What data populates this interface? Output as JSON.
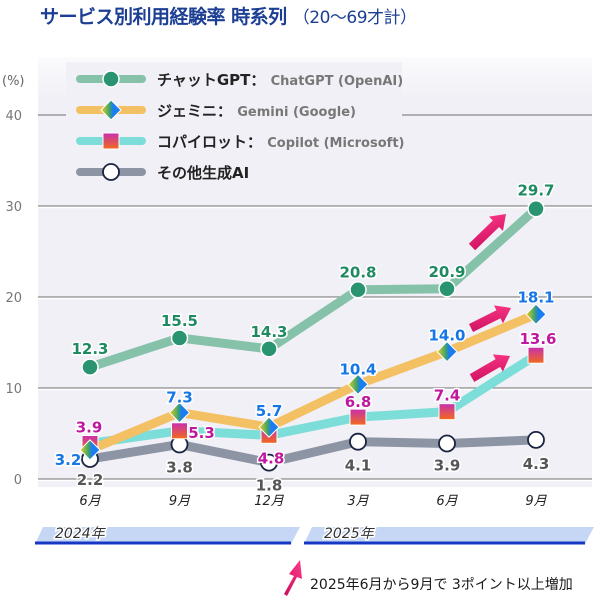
{
  "title": {
    "main": "サービス別利用経験率 時系列",
    "sub": "（20〜69才計）"
  },
  "chart_data": {
    "type": "line",
    "title": "サービス別利用経験率 時系列（20〜69才計）",
    "ylabel": "(%)",
    "ylim": [
      0,
      40
    ],
    "yticks": [
      "0",
      "10",
      "20",
      "30",
      "40"
    ],
    "grid": true,
    "legend_position": "top-left",
    "categories": [
      "6月",
      "9月",
      "12月",
      "3月",
      "6月",
      "9月"
    ],
    "years": [
      {
        "label": "2024年",
        "span": [
          0,
          2
        ]
      },
      {
        "label": "2025年",
        "span": [
          3,
          5
        ]
      }
    ],
    "series": [
      {
        "name": "チャットGPT",
        "name_en": "ChatGPT (OpenAI)",
        "values": [
          12.3,
          15.5,
          14.3,
          20.8,
          20.9,
          29.7
        ],
        "labels": [
          "12.3",
          "15.5",
          "14.3",
          "20.8",
          "20.9",
          "29.7"
        ],
        "marker": "circle",
        "line_color": "#86c2aa",
        "marker_color": "#2a9470",
        "label_color": "#1f8a62"
      },
      {
        "name": "ジェミニ",
        "name_en": "Gemini (Google)",
        "values": [
          3.2,
          7.3,
          5.7,
          10.4,
          14.0,
          18.1
        ],
        "labels": [
          "3.2",
          "7.3",
          "5.7",
          "10.4",
          "14.0",
          "18.1"
        ],
        "marker": "diamond",
        "line_color": "#f4c064",
        "marker_color": "#1a7ef0",
        "label_color": "#1576e8"
      },
      {
        "name": "コパイロット",
        "name_en": "Copilot (Microsoft)",
        "values": [
          3.9,
          5.3,
          4.8,
          6.8,
          7.4,
          13.6
        ],
        "labels": [
          "3.9",
          "5.3",
          "4.8",
          "6.8",
          "7.4",
          "13.6"
        ],
        "marker": "square",
        "line_color": "#7dddd8",
        "marker_color": "#d02aa8",
        "label_color": "#c0179f"
      },
      {
        "name": "その他生成AI",
        "name_en": "",
        "values": [
          2.2,
          3.8,
          1.8,
          4.1,
          3.9,
          4.3
        ],
        "labels": [
          "2.2",
          "3.8",
          "1.8",
          "4.1",
          "3.9",
          "4.3"
        ],
        "marker": "open-circle",
        "line_color": "#8d94a3",
        "marker_color": "#ffffff",
        "label_color": "#555555"
      }
    ],
    "annotation": "2025年6月から9月で 3ポイント以上増加",
    "highlight_color": "#e0166e"
  }
}
